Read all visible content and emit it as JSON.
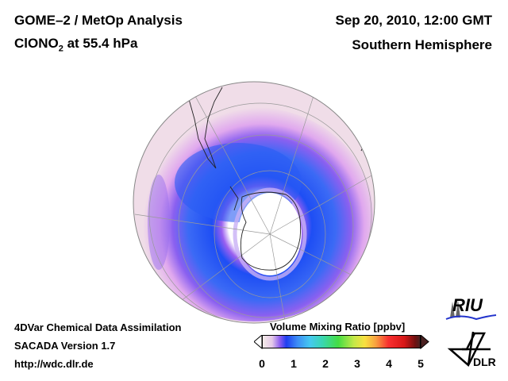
{
  "header": {
    "title_line1": "GOME–2 / MetOp Analysis",
    "title_species": "ClONO",
    "title_sub": "2",
    "title_level": " at 55.4 hPa",
    "date": "Sep 20, 2010, 12:00 GMT",
    "region": "Southern Hemisphere"
  },
  "footer": {
    "line1": "4DVar Chemical Data Assimilation",
    "line2": "SACADA Version 1.7",
    "line3": "http://wdc.dlr.de"
  },
  "colorbar": {
    "label": "Volume Mixing Ratio [ppbv]",
    "ticks": [
      "0",
      "1",
      "2",
      "3",
      "4",
      "5"
    ],
    "range": [
      0,
      5
    ]
  },
  "logos": {
    "riu": "RIU",
    "dlr": "DLR"
  },
  "colors": {
    "background_field": "#f0dde8",
    "low": "#e9b0ef",
    "mid": "#7a5cf2",
    "high": "#1f4ef2"
  }
}
